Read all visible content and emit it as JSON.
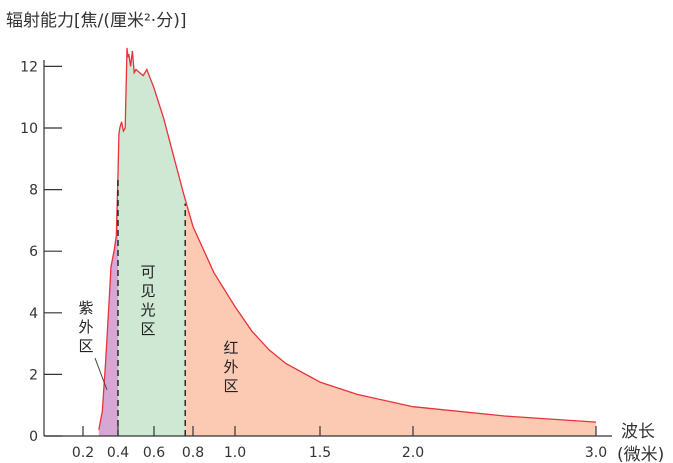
{
  "chart_data": {
    "type": "area",
    "ylabel": "辐射能力[焦/(厘米²·分)]",
    "xlabel_line1": "波长",
    "xlabel_line2": "(微米)",
    "yticks": [
      "0",
      "2",
      "4",
      "6",
      "8",
      "10",
      "12"
    ],
    "xticks": [
      "0.2",
      "0.4",
      "0.6",
      "0.8",
      "1.0",
      "1.5",
      "2.0",
      "3.0"
    ],
    "xlim": [
      0.2,
      3.0
    ],
    "ylim": [
      0,
      13
    ],
    "curve": {
      "x": [
        0.29,
        0.31,
        0.33,
        0.35,
        0.36,
        0.37,
        0.38,
        0.39,
        0.4,
        0.405,
        0.41,
        0.42,
        0.43,
        0.44,
        0.45,
        0.455,
        0.46,
        0.47,
        0.48,
        0.49,
        0.5,
        0.52,
        0.54,
        0.56,
        0.58,
        0.6,
        0.65,
        0.7,
        0.75,
        0.8,
        0.9,
        1.0,
        1.1,
        1.2,
        1.3,
        1.5,
        1.7,
        2.0,
        2.5,
        3.0
      ],
      "y": [
        0.2,
        0.8,
        2.5,
        4.5,
        5.5,
        5.8,
        6.1,
        6.5,
        8.5,
        9.8,
        10.0,
        10.2,
        9.9,
        10.0,
        12.6,
        12.3,
        12.4,
        12.0,
        12.5,
        11.8,
        11.9,
        11.8,
        11.7,
        11.9,
        11.6,
        11.3,
        10.3,
        9.1,
        7.9,
        6.8,
        5.3,
        4.2,
        3.4,
        2.8,
        2.35,
        1.75,
        1.35,
        0.95,
        0.65,
        0.45
      ]
    },
    "regions": [
      {
        "name": "紫外区",
        "x_range": [
          0.29,
          0.4
        ],
        "color": "#d6a6d4"
      },
      {
        "name": "可见光区",
        "x_range": [
          0.4,
          0.76
        ],
        "color": "#cfe8d3"
      },
      {
        "name": "红外区",
        "x_range": [
          0.76,
          3.0
        ],
        "color": "#fccab3"
      }
    ],
    "boundaries": [
      0.4,
      0.76
    ],
    "curve_color": "#e8323c"
  }
}
